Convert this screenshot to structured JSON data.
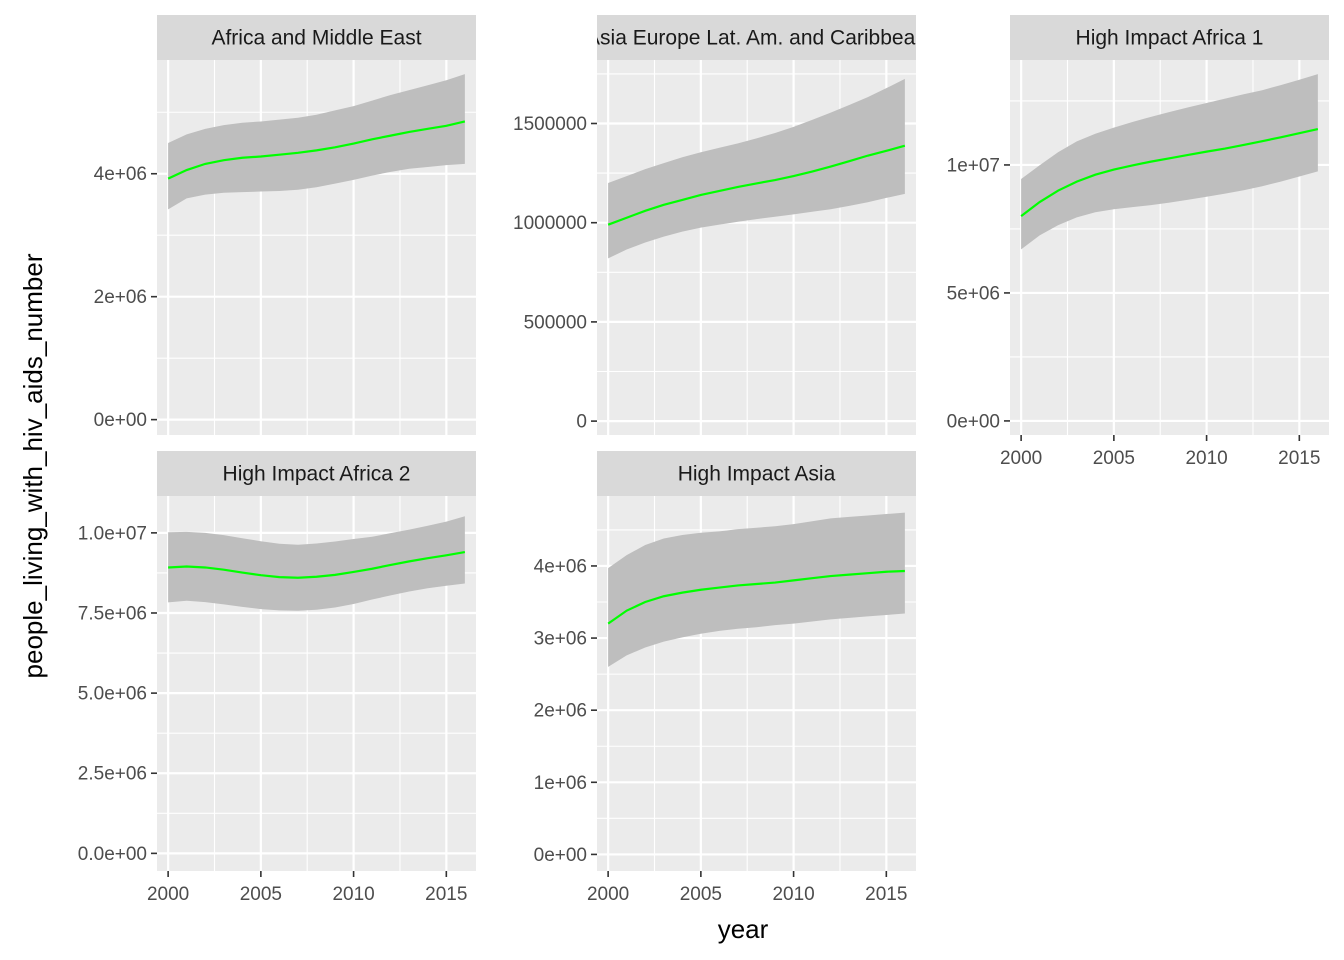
{
  "chart_data": {
    "type": "line",
    "layout": "facet_wrap",
    "xlabel": "year",
    "ylabel": "people_living_with_hiv_aids_number",
    "colors": {
      "line": "#00ff00",
      "ribbon": "#bebebe",
      "panel_background": "#ebebeb",
      "strip_background": "#d9d9d9",
      "grid": "#ffffff"
    },
    "panels": [
      {
        "title": "Africa and Middle East",
        "xlim": [
          1999.4,
          2016.6
        ],
        "ylim": [
          -250000,
          5850000
        ],
        "x_ticks": [
          2000,
          2005,
          2010,
          2015
        ],
        "show_x_ticks": false,
        "y_ticks": [
          0,
          2000000,
          4000000
        ],
        "y_tick_labels": [
          "0e+00",
          "2e+06",
          "4e+06"
        ],
        "x": [
          2000,
          2001,
          2002,
          2003,
          2004,
          2005,
          2006,
          2007,
          2008,
          2009,
          2010,
          2011,
          2012,
          2013,
          2014,
          2015,
          2016
        ],
        "y": [
          3920000,
          4060000,
          4160000,
          4220000,
          4260000,
          4280000,
          4310000,
          4340000,
          4380000,
          4430000,
          4490000,
          4560000,
          4620000,
          4680000,
          4730000,
          4780000,
          4850000
        ],
        "ymin": [
          3420000,
          3600000,
          3660000,
          3690000,
          3700000,
          3710000,
          3720000,
          3740000,
          3780000,
          3840000,
          3900000,
          3970000,
          4030000,
          4080000,
          4110000,
          4140000,
          4160000
        ],
        "ymax": [
          4500000,
          4640000,
          4730000,
          4790000,
          4830000,
          4850000,
          4880000,
          4910000,
          4960000,
          5030000,
          5100000,
          5190000,
          5280000,
          5360000,
          5440000,
          5520000,
          5620000
        ]
      },
      {
        "title": "Asia Europe Lat. Am. and Caribbean",
        "xlim": [
          1999.4,
          2016.6
        ],
        "ylim": [
          -70000,
          1820000
        ],
        "x_ticks": [
          2000,
          2005,
          2010,
          2015
        ],
        "show_x_ticks": false,
        "y_ticks": [
          0,
          500000,
          1000000,
          1500000
        ],
        "y_tick_labels": [
          "0",
          "500000",
          "1000000",
          "1500000"
        ],
        "x": [
          2000,
          2001,
          2002,
          2003,
          2004,
          2005,
          2006,
          2007,
          2008,
          2009,
          2010,
          2011,
          2012,
          2013,
          2014,
          2015,
          2016
        ],
        "y": [
          990000,
          1025000,
          1060000,
          1090000,
          1115000,
          1140000,
          1160000,
          1180000,
          1198000,
          1215000,
          1235000,
          1258000,
          1283000,
          1310000,
          1338000,
          1362000,
          1388000
        ],
        "ymin": [
          820000,
          865000,
          900000,
          930000,
          955000,
          975000,
          990000,
          1005000,
          1018000,
          1030000,
          1042000,
          1055000,
          1068000,
          1085000,
          1103000,
          1125000,
          1145000
        ],
        "ymax": [
          1200000,
          1235000,
          1270000,
          1300000,
          1330000,
          1355000,
          1378000,
          1400000,
          1425000,
          1452000,
          1483000,
          1518000,
          1555000,
          1593000,
          1633000,
          1678000,
          1725000
        ]
      },
      {
        "title": "High Impact Africa 1",
        "xlim": [
          1999.4,
          2016.6
        ],
        "ylim": [
          -550000,
          14100000
        ],
        "x_ticks": [
          2000,
          2005,
          2010,
          2015
        ],
        "show_x_ticks": true,
        "y_ticks": [
          0,
          5000000,
          10000000
        ],
        "y_tick_labels": [
          "0e+00",
          "5e+06",
          "1e+07"
        ],
        "x": [
          2000,
          2001,
          2002,
          2003,
          2004,
          2005,
          2006,
          2007,
          2008,
          2009,
          2010,
          2011,
          2012,
          2013,
          2014,
          2015,
          2016
        ],
        "y": [
          8000000,
          8550000,
          9000000,
          9350000,
          9620000,
          9820000,
          9980000,
          10130000,
          10260000,
          10390000,
          10520000,
          10640000,
          10780000,
          10930000,
          11080000,
          11240000,
          11400000
        ],
        "ymin": [
          6700000,
          7250000,
          7650000,
          7950000,
          8150000,
          8270000,
          8350000,
          8430000,
          8530000,
          8640000,
          8760000,
          8880000,
          9010000,
          9170000,
          9350000,
          9550000,
          9750000
        ],
        "ymax": [
          9450000,
          9990000,
          10500000,
          10920000,
          11220000,
          11460000,
          11680000,
          11880000,
          12070000,
          12250000,
          12420000,
          12590000,
          12760000,
          12920000,
          13120000,
          13330000,
          13550000
        ]
      },
      {
        "title": "High Impact Africa 2",
        "xlim": [
          1999.4,
          2016.6
        ],
        "ylim": [
          -550000,
          11150000
        ],
        "x_ticks": [
          2000,
          2005,
          2010,
          2015
        ],
        "show_x_ticks": true,
        "y_ticks": [
          0,
          2500000,
          5000000,
          7500000,
          10000000
        ],
        "y_tick_labels": [
          "0.0e+00",
          "2.5e+06",
          "5.0e+06",
          "7.5e+06",
          "1.0e+07"
        ],
        "x": [
          2000,
          2001,
          2002,
          2003,
          2004,
          2005,
          2006,
          2007,
          2008,
          2009,
          2010,
          2011,
          2012,
          2013,
          2014,
          2015,
          2016
        ],
        "y": [
          8920000,
          8950000,
          8920000,
          8850000,
          8760000,
          8680000,
          8620000,
          8600000,
          8630000,
          8690000,
          8780000,
          8880000,
          9000000,
          9110000,
          9210000,
          9300000,
          9400000
        ],
        "ymin": [
          7830000,
          7880000,
          7840000,
          7770000,
          7690000,
          7620000,
          7580000,
          7570000,
          7600000,
          7670000,
          7780000,
          7920000,
          8050000,
          8170000,
          8270000,
          8350000,
          8420000
        ],
        "ymax": [
          10020000,
          10030000,
          10000000,
          9930000,
          9830000,
          9740000,
          9660000,
          9630000,
          9670000,
          9730000,
          9810000,
          9880000,
          9990000,
          10100000,
          10220000,
          10350000,
          10520000
        ]
      },
      {
        "title": "High Impact Asia",
        "xlim": [
          1999.4,
          2016.6
        ],
        "ylim": [
          -230000,
          4970000
        ],
        "x_ticks": [
          2000,
          2005,
          2010,
          2015
        ],
        "show_x_ticks": true,
        "y_ticks": [
          0,
          1000000,
          2000000,
          3000000,
          4000000
        ],
        "y_tick_labels": [
          "0e+00",
          "1e+06",
          "2e+06",
          "3e+06",
          "4e+06"
        ],
        "x": [
          2000,
          2001,
          2002,
          2003,
          2004,
          2005,
          2006,
          2007,
          2008,
          2009,
          2010,
          2011,
          2012,
          2013,
          2014,
          2015,
          2016
        ],
        "y": [
          3200000,
          3380000,
          3500000,
          3580000,
          3630000,
          3670000,
          3700000,
          3730000,
          3750000,
          3770000,
          3800000,
          3830000,
          3860000,
          3880000,
          3900000,
          3920000,
          3930000
        ],
        "ymin": [
          2600000,
          2760000,
          2870000,
          2950000,
          3010000,
          3060000,
          3100000,
          3130000,
          3150000,
          3180000,
          3200000,
          3230000,
          3260000,
          3280000,
          3300000,
          3320000,
          3340000
        ],
        "ymax": [
          3970000,
          4150000,
          4290000,
          4380000,
          4430000,
          4460000,
          4480000,
          4510000,
          4530000,
          4550000,
          4580000,
          4620000,
          4660000,
          4680000,
          4700000,
          4720000,
          4740000
        ]
      }
    ]
  }
}
